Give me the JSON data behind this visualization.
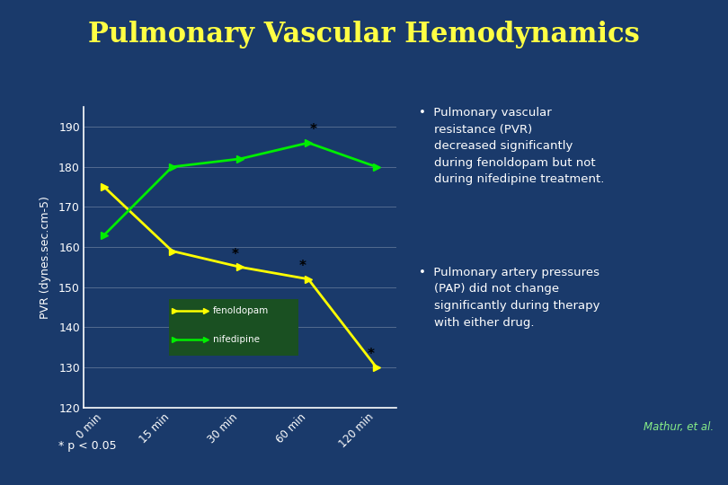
{
  "title": "Pulmonary Vascular Hemodynamics",
  "title_color": "#FFFF44",
  "title_fontsize": 22,
  "bg_color": "#1a3a6b",
  "separator_color1": "#e06080",
  "separator_color2": "#d4a840",
  "x_labels": [
    "0 min",
    "15 min",
    "30 min",
    "60 min",
    "120 min"
  ],
  "x_values": [
    0,
    1,
    2,
    3,
    4
  ],
  "fenoldopam_values": [
    175,
    159,
    155,
    152,
    130
  ],
  "nifedipine_values": [
    163,
    180,
    182,
    186,
    180
  ],
  "fenoldopam_color": "#FFFF00",
  "nifedipine_color": "#00EE00",
  "ylabel": "PVR (dynes.sec.cm-5)",
  "ylim": [
    120,
    195
  ],
  "yticks": [
    120,
    130,
    140,
    150,
    160,
    170,
    180,
    190
  ],
  "legend_bg": "#1a5022",
  "star_feno": [
    2,
    3,
    4
  ],
  "star_nife": [
    3
  ],
  "bullet1_line1": "Pulmonary vascular",
  "bullet1_line2": "resistance (PVR)",
  "bullet1_line3": "decreased significantly",
  "bullet1_line4": "during fenoldopam but not",
  "bullet1_line5": "during nifedipine treatment.",
  "bullet2_line1": "Pulmonary artery pressures",
  "bullet2_line2": "(PAP) did not change",
  "bullet2_line3": "significantly during therapy",
  "bullet2_line4": "with either drug.",
  "attribution": "Mathur, et al.",
  "pvalue_text": "* p < 0.05"
}
